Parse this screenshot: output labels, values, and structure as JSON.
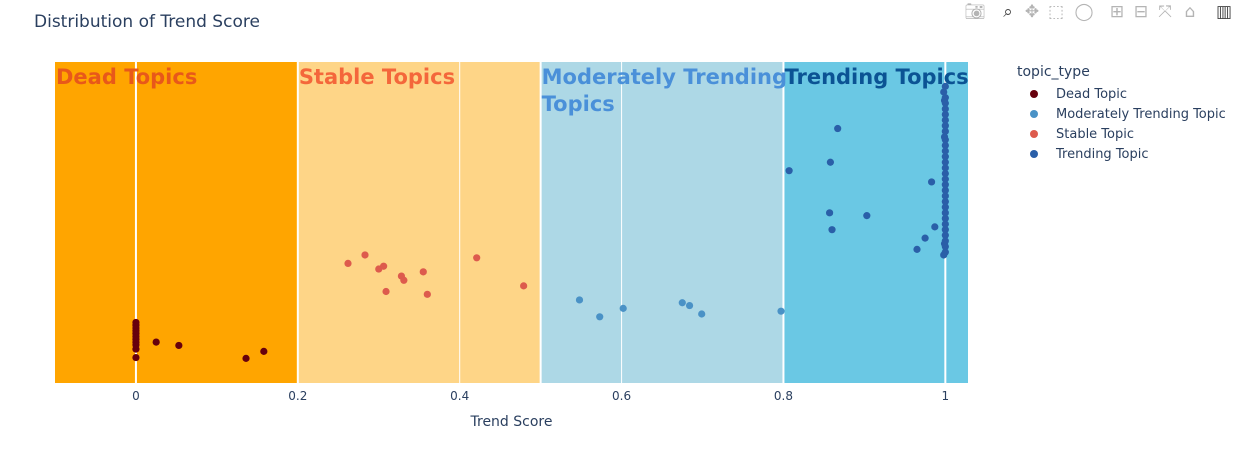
{
  "chart_data": {
    "type": "scatter",
    "title": "Distribution of Trend Score",
    "xlabel": "Trend Score",
    "ylabel": "",
    "xlim": [
      -0.1,
      1.028
    ],
    "xticks": [
      0,
      0.2,
      0.4,
      0.6,
      0.8,
      1
    ],
    "tick_labels": [
      "0",
      "0.2",
      "0.4",
      "0.6",
      "0.8",
      "1"
    ],
    "y_axis_visible": false,
    "grid": "vertical",
    "legend_title": "topic_type",
    "legend_position": "right",
    "bands": [
      {
        "label": "Dead Topics",
        "x0": -0.1,
        "x1": 0.2,
        "color": "#ffa500",
        "label_color": "#e8581a",
        "label_lines": [
          "Dead Topics"
        ]
      },
      {
        "label": "Stable Topics",
        "x0": 0.2,
        "x1": 0.5,
        "color": "#fed587",
        "label_color": "#f4673b",
        "label_lines": [
          "Stable Topics"
        ]
      },
      {
        "label": "Moderately Trending Topics",
        "x0": 0.5,
        "x1": 0.8,
        "color": "#add8e6",
        "label_color": "#4a90d9",
        "label_lines": [
          "Moderately Trending",
          "Topics"
        ]
      },
      {
        "label": "Trending Topics",
        "x0": 0.8,
        "x1": 1.028,
        "color": "#6ac8e4",
        "label_color": "#0b5394",
        "label_lines": [
          "Trending Topics"
        ]
      }
    ],
    "series": [
      {
        "name": "Dead Topic",
        "color": "#67000d",
        "points": [
          [
            0,
            0.055
          ],
          [
            0,
            0.085
          ],
          [
            0,
            0.1
          ],
          [
            0,
            0.11
          ],
          [
            0,
            0.12
          ],
          [
            0,
            0.13
          ],
          [
            0,
            0.14
          ],
          [
            0,
            0.15
          ],
          [
            0,
            0.16
          ],
          [
            0,
            0.17
          ],
          [
            0,
            0.18
          ],
          [
            0.025,
            0.11
          ],
          [
            0.053,
            0.098
          ],
          [
            0.136,
            0.052
          ],
          [
            0.158,
            0.077
          ]
        ]
      },
      {
        "name": "Moderately Trending Topic",
        "color": "#4a92c6",
        "points": [
          [
            0.548,
            0.26
          ],
          [
            0.573,
            0.2
          ],
          [
            0.602,
            0.23
          ],
          [
            0.675,
            0.25
          ],
          [
            0.684,
            0.24
          ],
          [
            0.699,
            0.21
          ],
          [
            0.797,
            0.22
          ]
        ]
      },
      {
        "name": "Stable Topic",
        "color": "#dd5b4d",
        "points": [
          [
            0.262,
            0.39
          ],
          [
            0.283,
            0.42
          ],
          [
            0.3,
            0.37
          ],
          [
            0.306,
            0.38
          ],
          [
            0.309,
            0.29
          ],
          [
            0.328,
            0.345
          ],
          [
            0.331,
            0.33
          ],
          [
            0.355,
            0.36
          ],
          [
            0.36,
            0.28
          ],
          [
            0.421,
            0.41
          ],
          [
            0.479,
            0.31
          ]
        ]
      },
      {
        "name": "Trending Topic",
        "color": "#2a5fa8",
        "points": [
          [
            0.807,
            0.72
          ],
          [
            0.857,
            0.57
          ],
          [
            0.858,
            0.75
          ],
          [
            0.86,
            0.51
          ],
          [
            0.867,
            0.87
          ],
          [
            0.903,
            0.56
          ],
          [
            0.965,
            0.44
          ],
          [
            0.975,
            0.48
          ],
          [
            0.983,
            0.68
          ],
          [
            0.987,
            0.52
          ],
          [
            0.998,
            0.42
          ],
          [
            0.998,
            1.0
          ],
          [
            0.999,
            0.46
          ],
          [
            0.999,
            0.97
          ],
          [
            0.999,
            0.84
          ],
          [
            1.0,
            0.43
          ],
          [
            1.0,
            0.45
          ],
          [
            1.0,
            0.47
          ],
          [
            1.0,
            0.49
          ],
          [
            1.0,
            0.51
          ],
          [
            1.0,
            0.53
          ],
          [
            1.0,
            0.55
          ],
          [
            1.0,
            0.57
          ],
          [
            1.0,
            0.59
          ],
          [
            1.0,
            0.61
          ],
          [
            1.0,
            0.63
          ],
          [
            1.0,
            0.65
          ],
          [
            1.0,
            0.67
          ],
          [
            1.0,
            0.69
          ],
          [
            1.0,
            0.71
          ],
          [
            1.0,
            0.73
          ],
          [
            1.0,
            0.75
          ],
          [
            1.0,
            0.77
          ],
          [
            1.0,
            0.79
          ],
          [
            1.0,
            0.81
          ],
          [
            1.0,
            0.83
          ],
          [
            1.0,
            0.86
          ],
          [
            1.0,
            0.88
          ],
          [
            1.0,
            0.9
          ],
          [
            1.0,
            0.92
          ],
          [
            1.0,
            0.94
          ],
          [
            1.0,
            0.96
          ],
          [
            1.0,
            0.98
          ],
          [
            1.0,
            1.02
          ]
        ]
      }
    ]
  },
  "modebar": {
    "buttons": [
      {
        "name": "camera-icon",
        "glyph": "📷︎",
        "title": "Download plot as a png"
      },
      {
        "name": "zoom-icon",
        "glyph": "⌕",
        "title": "Zoom"
      },
      {
        "name": "pan-icon",
        "glyph": "✥",
        "title": "Pan"
      },
      {
        "name": "box-select-icon",
        "glyph": "⬚",
        "title": "Box Select"
      },
      {
        "name": "lasso-select-icon",
        "glyph": "◯",
        "title": "Lasso Select"
      },
      {
        "name": "zoom-in-icon",
        "glyph": "⊞",
        "title": "Zoom in"
      },
      {
        "name": "zoom-out-icon",
        "glyph": "⊟",
        "title": "Zoom out"
      },
      {
        "name": "autoscale-icon",
        "glyph": "⤧",
        "title": "Autoscale"
      },
      {
        "name": "home-icon",
        "glyph": "⌂",
        "title": "Reset axes"
      },
      {
        "name": "plotly-logo-icon",
        "glyph": "▥",
        "title": "Produced with Plotly"
      }
    ]
  }
}
